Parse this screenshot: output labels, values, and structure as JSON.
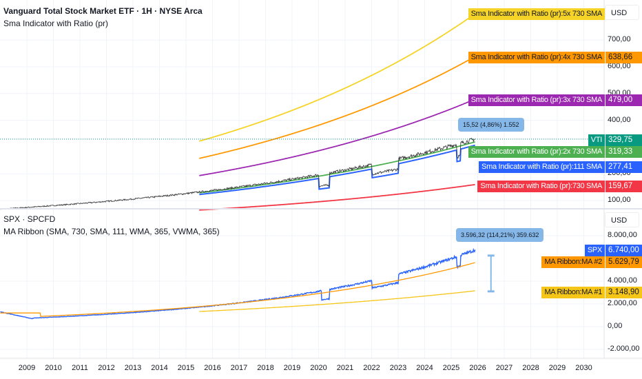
{
  "top_pane": {
    "title": "Vanguard Total Stock Market ETF · 1H · NYSE Arca",
    "indicator": "Sma Indicator with Ratio (pr)",
    "currency": "USD",
    "ticks": [
      "700,00",
      "600,00",
      "500,00",
      "400,00",
      "200,00",
      "100,00"
    ],
    "tick_values": [
      700,
      600,
      500,
      400,
      200,
      100
    ],
    "labels": [
      {
        "name": "Sma Indicator with Ratio (pr):5x 730 SMA",
        "value": "",
        "color": "#f5d327",
        "v": 800
      },
      {
        "name": "Sma Indicator with Ratio (pr):4x 730 SMA",
        "value": "638,66",
        "color": "#ff9800",
        "v": 638.66
      },
      {
        "name": "Sma Indicator with Ratio (pr):3x 730 SMA",
        "value": "479,00",
        "color": "#9c27b0",
        "v": 479
      },
      {
        "name": "VTI",
        "value": "329,75",
        "color": "#089981",
        "v": 329.75
      },
      {
        "name": "Sma Indicator with Ratio (pr):2x 730 SMA",
        "value": "319,33",
        "color": "#4caf50",
        "v": 319.33
      },
      {
        "name": "Sma Indicator with Ratio (pr):111 SMA",
        "value": "277,41",
        "color": "#2962ff",
        "v": 277.41
      },
      {
        "name": "Sma Indicator with Ratio (pr):730 SMA",
        "value": "159,67",
        "color": "#f23645",
        "v": 159.67
      }
    ],
    "measure": "15,52 (4,86%) 1.552"
  },
  "bottom_pane": {
    "title": "SPX · SPCFD",
    "indicator": "MA Ribbon (SMA, 730, SMA, 111, WMA, 365, VWMA, 365)",
    "currency": "USD",
    "ticks": [
      "8.000,00",
      "4.000,00",
      "2.000,00",
      "0,00",
      "-2.000,00"
    ],
    "tick_values": [
      8000,
      4000,
      2000,
      0,
      -2000
    ],
    "labels": [
      {
        "name": "SPX",
        "value": "6.740,00",
        "color": "#2962ff",
        "v": 6740
      },
      {
        "name": "MA Ribbon:MA #2",
        "value": "5.629,79",
        "color": "#ff9800",
        "v": 5629.79
      },
      {
        "name": "MA Ribbon:MA #1",
        "value": "3.148,90",
        "color": "#f5c518",
        "v": 3148.9
      }
    ],
    "measure": "3.596,32 (114,21%) 359.632"
  },
  "time_axis": [
    "2009",
    "2010",
    "2011",
    "2012",
    "2013",
    "2014",
    "2015",
    "2016",
    "2017",
    "2018",
    "2019",
    "2020",
    "2021",
    "2022",
    "2023",
    "2024",
    "2025",
    "2026",
    "2027",
    "2028",
    "2029",
    "2030"
  ]
}
